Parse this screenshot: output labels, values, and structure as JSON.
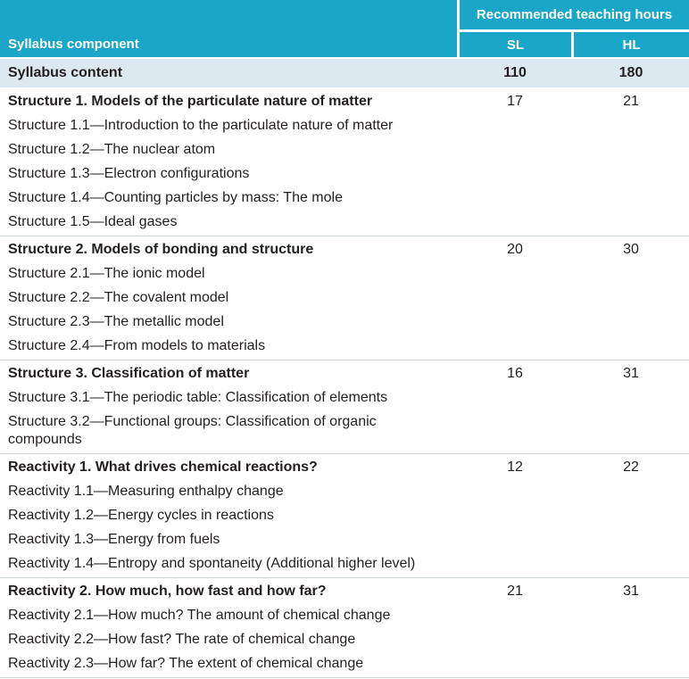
{
  "header": {
    "group": "Recommended teaching hours",
    "component": "Syllabus component",
    "sl": "SL",
    "hl": "HL"
  },
  "total": {
    "label": "Syllabus content",
    "sl": 110,
    "hl": 180
  },
  "sections": [
    {
      "title": "Structure 1. Models of the particulate nature of matter",
      "sl": 17,
      "hl": 21,
      "items": [
        "Structure 1.1—Introduction to the particulate nature of matter",
        "Structure 1.2—The nuclear atom",
        "Structure 1.3—Electron configurations",
        "Structure 1.4—Counting particles by mass: The mole",
        "Structure 1.5—Ideal gases"
      ]
    },
    {
      "title": "Structure 2. Models of bonding and structure",
      "sl": 20,
      "hl": 30,
      "items": [
        "Structure 2.1—The ionic model",
        "Structure 2.2—The covalent model",
        "Structure 2.3—The metallic model",
        "Structure 2.4—From models to materials"
      ]
    },
    {
      "title": "Structure 3. Classification of matter",
      "sl": 16,
      "hl": 31,
      "items": [
        "Structure 3.1—The periodic table: Classification of elements",
        "Structure 3.2—Functional groups: Classification of organic compounds"
      ]
    },
    {
      "title": "Reactivity 1. What drives chemical reactions?",
      "sl": 12,
      "hl": 22,
      "items": [
        "Reactivity 1.1—Measuring enthalpy change",
        "Reactivity 1.2—Energy cycles in reactions",
        "Reactivity 1.3—Energy from fuels",
        "Reactivity 1.4—Entropy and spontaneity (Additional higher level)"
      ]
    },
    {
      "title": "Reactivity 2. How much, how fast and how far?",
      "sl": 21,
      "hl": 31,
      "items": [
        "Reactivity 2.1—How much? The amount of chemical change",
        "Reactivity 2.2—How fast? The rate of chemical change",
        "Reactivity 2.3—How far? The extent of chemical change"
      ]
    }
  ]
}
